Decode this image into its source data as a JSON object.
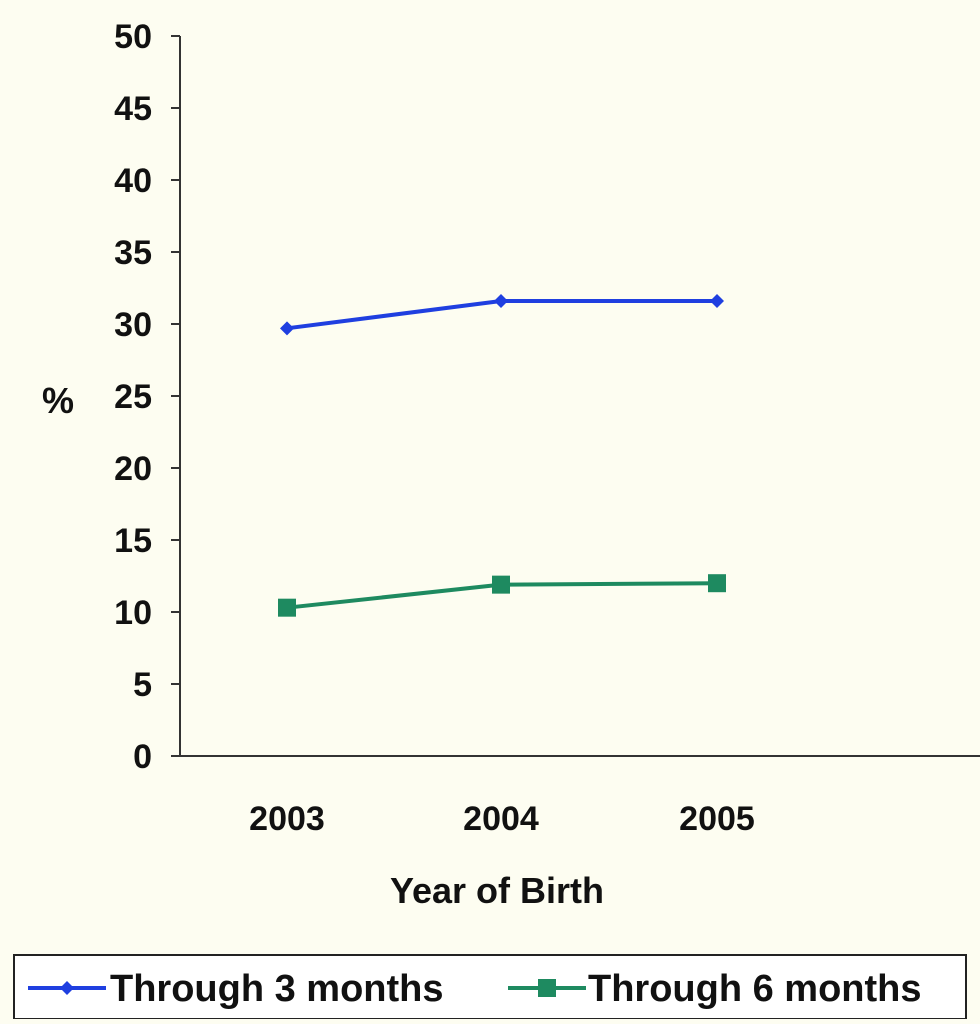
{
  "chart_data": {
    "type": "line",
    "categories": [
      "2003",
      "2004",
      "2005"
    ],
    "series": [
      {
        "name": "Through 3 months",
        "values": [
          29.7,
          31.6,
          31.6
        ],
        "color": "#1f3fe0",
        "marker": "diamond"
      },
      {
        "name": "Through 6 months",
        "values": [
          10.3,
          11.9,
          12.0
        ],
        "color": "#1e8a60",
        "marker": "square"
      }
    ],
    "xlabel": "Year of Birth",
    "ylabel": "%",
    "ylim": [
      0,
      50
    ],
    "yticks": [
      "0",
      "5",
      "10",
      "15",
      "20",
      "25",
      "30",
      "35",
      "40",
      "45",
      "50"
    ],
    "grid": false,
    "legend_position": "bottom"
  }
}
